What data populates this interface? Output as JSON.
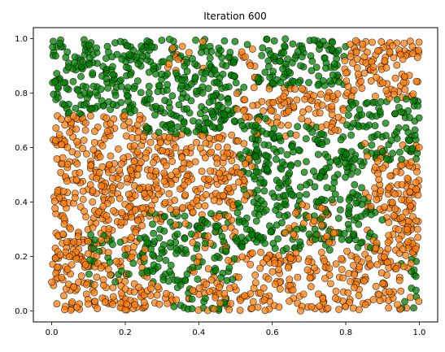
{
  "chart_data": {
    "type": "scatter",
    "title": "Iteration 600",
    "xlabel": "",
    "ylabel": "",
    "xlim": [
      -0.05,
      1.05
    ],
    "ylim": [
      -0.04,
      1.04
    ],
    "xticks": [
      0.0,
      0.2,
      0.4,
      0.6,
      0.8,
      1.0
    ],
    "xtick_labels": [
      "0.0",
      "0.2",
      "0.4",
      "0.6",
      "0.8",
      "1.0"
    ],
    "yticks": [
      0.0,
      0.2,
      0.4,
      0.6,
      0.8,
      1.0
    ],
    "ytick_labels": [
      "0.0",
      "0.2",
      "0.4",
      "0.6",
      "0.8",
      "1.0"
    ],
    "grid": false,
    "legend": "none",
    "point_count_approx": 2500,
    "series": [
      {
        "color": "#ff7f0e",
        "edgecolor": "#000000",
        "regions": [
          {
            "x": [
              0.0,
              0.26
            ],
            "y": [
              0.1,
              0.72
            ]
          },
          {
            "x": [
              0.15,
              0.5
            ],
            "y": [
              0.3,
              0.65
            ]
          },
          {
            "x": [
              0.38,
              0.5
            ],
            "y": [
              0.06,
              0.3
            ]
          },
          {
            "x": [
              0.5,
              0.95
            ],
            "y": [
              0.0,
              0.22
            ]
          },
          {
            "x": [
              0.0,
              0.3
            ],
            "y": [
              0.0,
              0.1
            ]
          },
          {
            "x": [
              0.52,
              0.8
            ],
            "y": [
              0.66,
              0.82
            ]
          },
          {
            "x": [
              0.78,
              1.0
            ],
            "y": [
              0.78,
              1.0
            ]
          },
          {
            "x": [
              0.85,
              1.0
            ],
            "y": [
              0.2,
              0.62
            ]
          },
          {
            "x": [
              0.62,
              0.78
            ],
            "y": [
              0.25,
              0.4
            ]
          },
          {
            "x": [
              0.3,
              0.42
            ],
            "y": [
              0.88,
              1.0
            ]
          },
          {
            "x": [
              0.5,
              0.56
            ],
            "y": [
              0.84,
              0.96
            ]
          }
        ]
      },
      {
        "color": "#008000",
        "edgecolor": "#000000",
        "regions": [
          {
            "x": [
              0.0,
              0.5
            ],
            "y": [
              0.72,
              1.0
            ]
          },
          {
            "x": [
              0.25,
              0.75
            ],
            "y": [
              0.65,
              0.72
            ]
          },
          {
            "x": [
              0.56,
              0.8
            ],
            "y": [
              0.82,
              1.0
            ]
          },
          {
            "x": [
              0.8,
              1.0
            ],
            "y": [
              0.55,
              0.78
            ]
          },
          {
            "x": [
              0.55,
              0.85
            ],
            "y": [
              0.4,
              0.64
            ]
          },
          {
            "x": [
              0.1,
              0.5
            ],
            "y": [
              0.1,
              0.3
            ]
          },
          {
            "x": [
              0.5,
              0.9
            ],
            "y": [
              0.22,
              0.4
            ]
          },
          {
            "x": [
              0.26,
              0.5
            ],
            "y": [
              0.22,
              0.36
            ]
          }
        ]
      }
    ]
  }
}
